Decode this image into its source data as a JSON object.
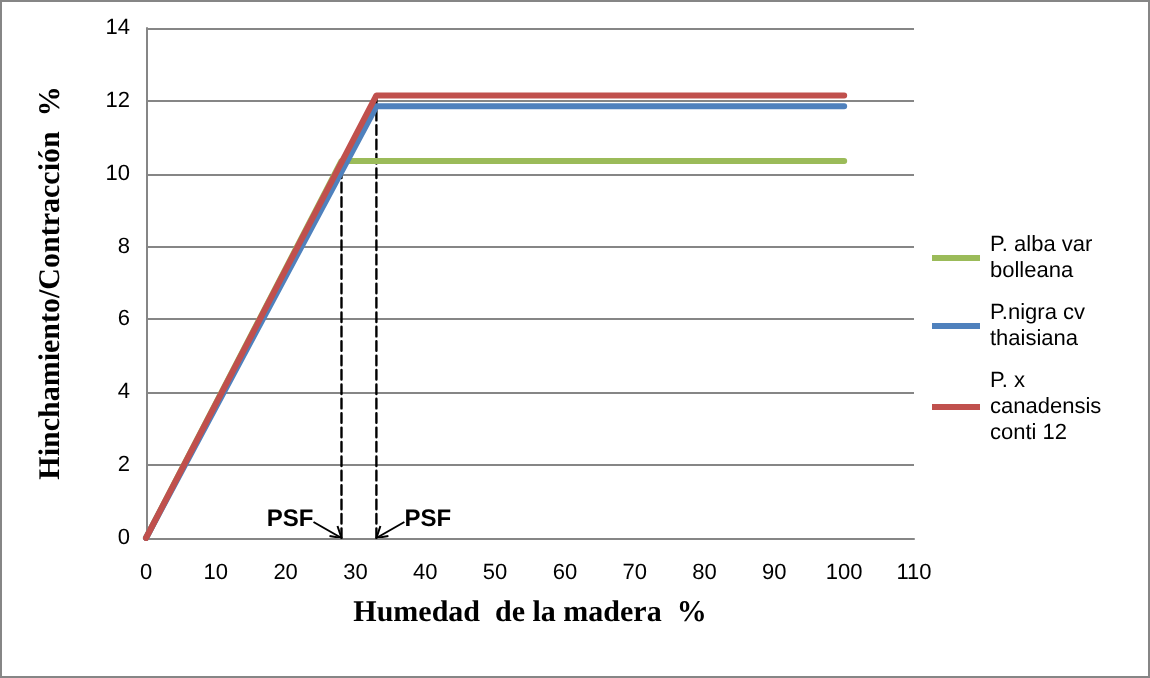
{
  "chart_data": {
    "type": "line",
    "xlabel": "Humedad  de la madera  %",
    "ylabel": "Hinchamiento/Contracción  %",
    "xlim": [
      0,
      110
    ],
    "xticks": [
      0,
      10,
      20,
      30,
      40,
      50,
      60,
      70,
      80,
      90,
      100,
      110
    ],
    "ylim": [
      0,
      14
    ],
    "yticks": [
      0,
      2,
      4,
      6,
      8,
      10,
      12,
      14
    ],
    "grid": "y",
    "legend": "right",
    "marker": "none",
    "line_style": "solid",
    "series": [
      {
        "name": "P. alba var bolleana",
        "color": "#9bbb59",
        "x": [
          0,
          28,
          100
        ],
        "values": [
          0,
          10.35,
          10.35
        ]
      },
      {
        "name": "P.nigra cv thaisiana",
        "color": "#4f81bd",
        "x": [
          0,
          33,
          100
        ],
        "values": [
          0,
          11.85,
          11.85
        ]
      },
      {
        "name": "P. x canadensis conti 12",
        "color": "#c0504d",
        "x": [
          0,
          33,
          100
        ],
        "values": [
          0,
          12.15,
          12.15
        ]
      },
      {
        "color": "#000000",
        "line_style": "dashed",
        "x": [
          28,
          28
        ],
        "values": [
          0,
          10.35
        ]
      },
      {
        "color": "#000000",
        "line_style": "dashed",
        "x": [
          33,
          33
        ],
        "values": [
          0,
          12.15
        ]
      }
    ],
    "annotations": [
      {
        "text": "PSF",
        "x": 28,
        "y": 0
      },
      {
        "text": "PSF",
        "x": 33,
        "y": 0
      }
    ]
  }
}
